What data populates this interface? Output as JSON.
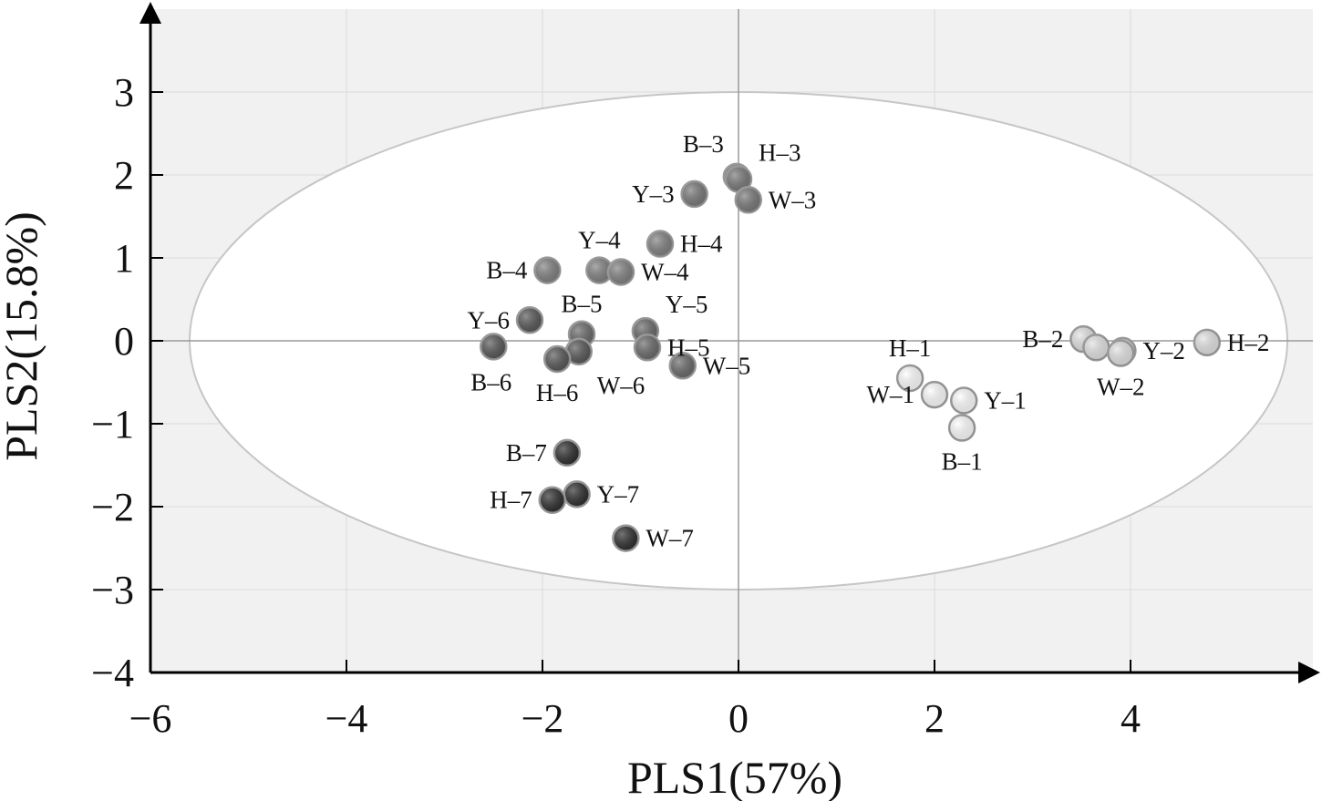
{
  "chart_data": {
    "type": "scatter",
    "xlabel": "PLS1(57%)",
    "ylabel": "PLS2(15.8%)",
    "xlim": [
      -6,
      6
    ],
    "ylim": [
      -4,
      4
    ],
    "x_ticks": [
      -6,
      -4,
      -2,
      0,
      2,
      4
    ],
    "y_ticks": [
      3,
      2,
      1,
      0,
      -1,
      -2,
      -3,
      -4
    ],
    "x_tick_labels": [
      "−6",
      "−4",
      "−2",
      "0",
      "2",
      "4"
    ],
    "y_tick_labels": [
      "3",
      "2",
      "1",
      "0",
      "−1",
      "−2",
      "−3",
      "−4"
    ],
    "grid": true,
    "confidence_ellipse": {
      "center": [
        0,
        0
      ],
      "radius_x": 5.6,
      "radius_y": 3.0
    },
    "group_colors": {
      "1": "#ffffff",
      "2": "#e3e3e3",
      "3": "#777777",
      "4": "#7f7f7f",
      "5": "#686868",
      "6": "#555555",
      "7": "#2b2b2b"
    },
    "points": [
      {
        "label": "H–1",
        "group": "1",
        "x": 1.75,
        "y": -0.45,
        "label_pos": "top"
      },
      {
        "label": "W–1",
        "group": "1",
        "x": 2.0,
        "y": -0.65,
        "label_pos": "left"
      },
      {
        "label": "Y–1",
        "group": "1",
        "x": 2.3,
        "y": -0.72,
        "label_pos": "right"
      },
      {
        "label": "B–1",
        "group": "1",
        "x": 2.28,
        "y": -1.05,
        "label_pos": "bottom"
      },
      {
        "label": "B–2",
        "group": "2",
        "x": 3.52,
        "y": 0.02,
        "label_pos": "left"
      },
      {
        "label": "",
        "group": "2",
        "x": 3.65,
        "y": -0.08,
        "label_pos": "none"
      },
      {
        "label": "Y–2",
        "group": "2",
        "x": 3.92,
        "y": -0.12,
        "label_pos": "right"
      },
      {
        "label": "W–2",
        "group": "2",
        "x": 3.9,
        "y": -0.15,
        "label_pos": "bottom"
      },
      {
        "label": "H–2",
        "group": "2",
        "x": 4.78,
        "y": -0.02,
        "label_pos": "right"
      },
      {
        "label": "B–3",
        "group": "3",
        "x": -0.02,
        "y": 1.98,
        "label_pos": "topleft"
      },
      {
        "label": "H–3",
        "group": "3",
        "x": 0.0,
        "y": 1.95,
        "label_pos": "topright"
      },
      {
        "label": "W–3",
        "group": "3",
        "x": 0.1,
        "y": 1.7,
        "label_pos": "right"
      },
      {
        "label": "Y–3",
        "group": "3",
        "x": -0.45,
        "y": 1.77,
        "label_pos": "left"
      },
      {
        "label": "H–4",
        "group": "4",
        "x": -0.8,
        "y": 1.17,
        "label_pos": "right"
      },
      {
        "label": "Y–4",
        "group": "4",
        "x": -1.42,
        "y": 0.85,
        "label_pos": "top"
      },
      {
        "label": "W–4",
        "group": "4",
        "x": -1.2,
        "y": 0.83,
        "label_pos": "right"
      },
      {
        "label": "B–4",
        "group": "4",
        "x": -1.95,
        "y": 0.85,
        "label_pos": "left"
      },
      {
        "label": "B–5",
        "group": "5",
        "x": -1.6,
        "y": 0.08,
        "label_pos": "top"
      },
      {
        "label": "Y–5",
        "group": "5",
        "x": -0.95,
        "y": 0.12,
        "label_pos": "topright"
      },
      {
        "label": "H–5",
        "group": "5",
        "x": -0.93,
        "y": -0.08,
        "label_pos": "right"
      },
      {
        "label": "W–5",
        "group": "5",
        "x": -0.57,
        "y": -0.3,
        "label_pos": "right"
      },
      {
        "label": "W–6",
        "group": "6",
        "x": -1.63,
        "y": -0.13,
        "label_pos": "bottomright"
      },
      {
        "label": "Y–6",
        "group": "6",
        "x": -2.13,
        "y": 0.25,
        "label_pos": "left"
      },
      {
        "label": "B–6",
        "group": "6",
        "x": -2.5,
        "y": -0.07,
        "label_pos": "bottomleft"
      },
      {
        "label": "H–6",
        "group": "6",
        "x": -1.85,
        "y": -0.22,
        "label_pos": "bottom"
      },
      {
        "label": "B–7",
        "group": "7",
        "x": -1.75,
        "y": -1.35,
        "label_pos": "left"
      },
      {
        "label": "Y–7",
        "group": "7",
        "x": -1.65,
        "y": -1.85,
        "label_pos": "right"
      },
      {
        "label": "H–7",
        "group": "7",
        "x": -1.9,
        "y": -1.92,
        "label_pos": "left"
      },
      {
        "label": "W–7",
        "group": "7",
        "x": -1.15,
        "y": -2.38,
        "label_pos": "right"
      }
    ]
  }
}
